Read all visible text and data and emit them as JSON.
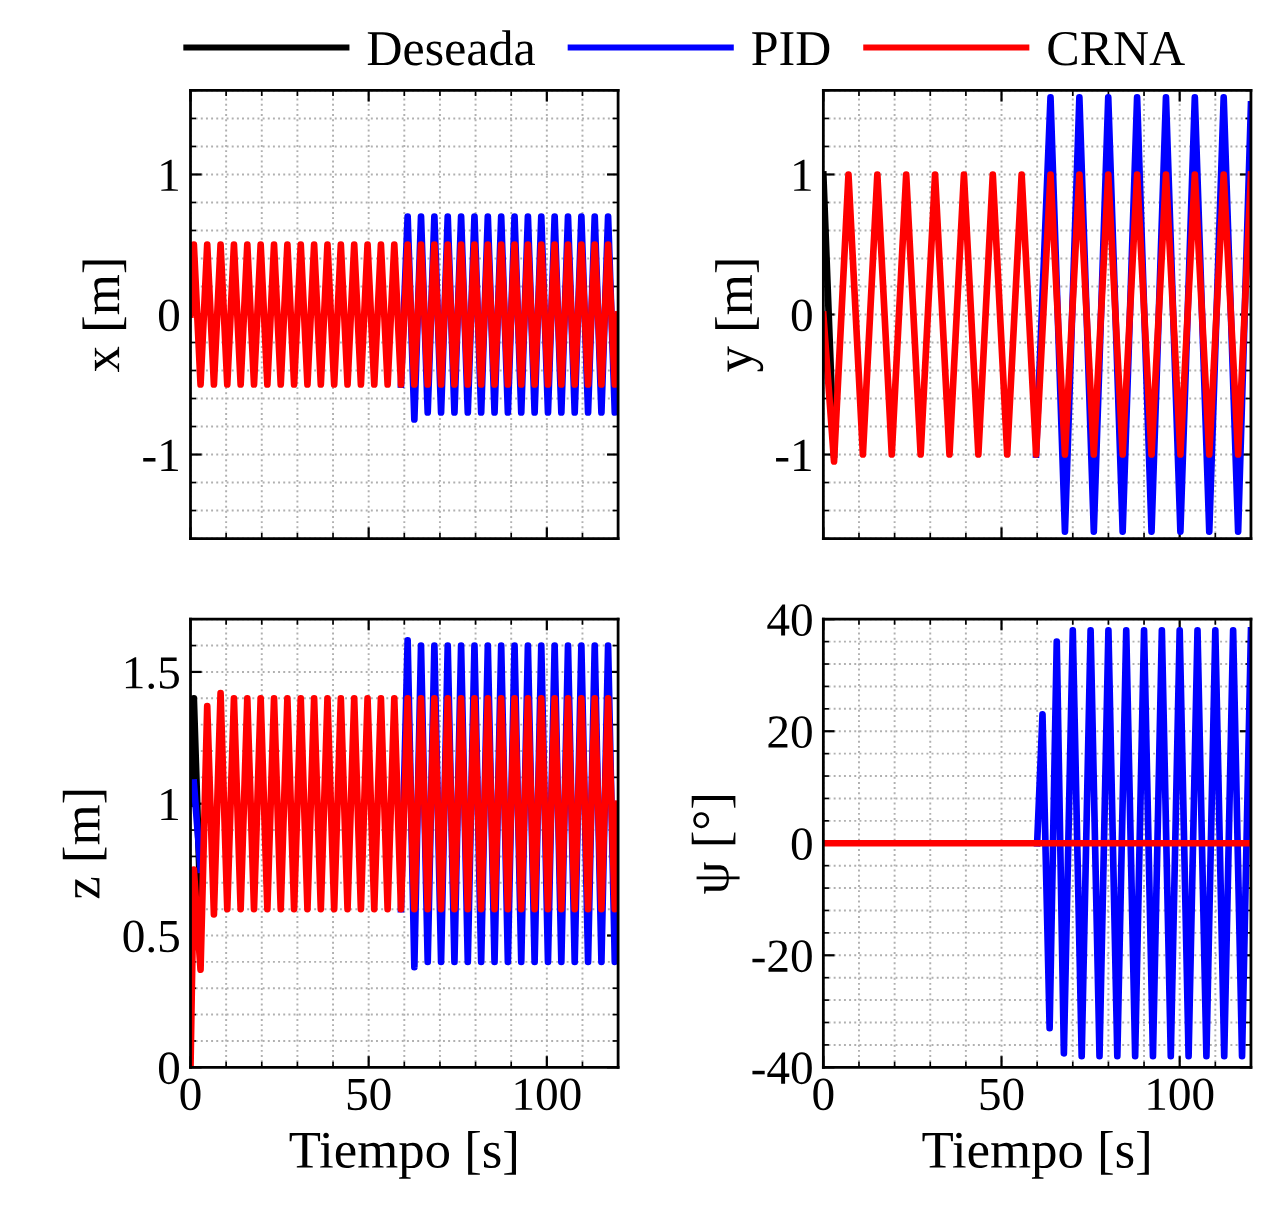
{
  "chart_data": [
    {
      "type": "line",
      "ylabel": "x [m]",
      "xlim": [
        0,
        120
      ],
      "xticks": [
        0,
        50,
        100
      ],
      "ylim": [
        -1.6,
        1.6
      ],
      "yticks": [
        -1,
        0,
        1
      ],
      "tick_labels": "y",
      "grid": true,
      "legend": "top",
      "line_style": "solid",
      "x": [
        0,
        0.94,
        2.82,
        4.69,
        6.57,
        8.44,
        10.32,
        12.19,
        14.07,
        15.94,
        17.82,
        19.69,
        21.57,
        23.44,
        25.32,
        27.19,
        29.07,
        30.94,
        32.82,
        34.69,
        36.57,
        38.44,
        40.32,
        42.19,
        44.07,
        45.94,
        47.82,
        49.69,
        51.57,
        53.44,
        55.32,
        57.19,
        59.07,
        60.94,
        62.82,
        64.69,
        66.57,
        68.44,
        70.32,
        72.19,
        74.07,
        75.94,
        77.82,
        79.69,
        81.57,
        83.44,
        85.32,
        87.19,
        89.07,
        90.94,
        92.82,
        94.69,
        96.57,
        98.44,
        100.32,
        102.19,
        104.07,
        105.94,
        107.82,
        109.69,
        111.57,
        113.44,
        115.32,
        117.19,
        119.07,
        120
      ],
      "series": [
        {
          "name": "Deseada",
          "color": "#000000",
          "values": [
            null,
            null,
            null,
            null,
            null,
            null,
            null,
            null,
            null,
            null,
            null,
            null,
            null,
            null,
            null,
            null,
            null,
            null,
            null,
            null,
            null,
            null,
            null,
            null,
            null,
            null,
            null,
            null,
            null,
            null,
            null,
            null,
            null,
            null,
            null,
            null,
            null,
            null,
            null,
            null,
            null,
            null,
            null,
            null,
            null,
            null,
            null,
            null,
            null,
            null,
            null,
            null,
            null,
            null,
            null,
            null,
            null,
            null,
            null,
            null,
            null,
            null,
            null,
            null,
            null,
            null
          ]
        },
        {
          "name": "PID",
          "color": "#0000ff",
          "values": [
            null,
            null,
            null,
            null,
            null,
            null,
            null,
            null,
            null,
            null,
            null,
            null,
            null,
            null,
            null,
            null,
            null,
            null,
            null,
            null,
            null,
            null,
            null,
            null,
            null,
            null,
            null,
            null,
            null,
            null,
            null,
            null,
            -0.5,
            0.7,
            -0.75,
            0.7,
            -0.7,
            0.7,
            -0.7,
            0.7,
            -0.7,
            0.7,
            -0.7,
            0.7,
            -0.7,
            0.7,
            -0.7,
            0.7,
            -0.7,
            0.7,
            -0.7,
            0.7,
            -0.7,
            0.7,
            -0.7,
            0.7,
            -0.7,
            0.7,
            -0.7,
            0.7,
            -0.7,
            0.7,
            -0.7,
            0.7,
            -0.7,
            -0.65
          ]
        },
        {
          "name": "CRNA",
          "color": "#ff0000",
          "values": [
            0,
            0.5,
            -0.5,
            0.5,
            -0.5,
            0.5,
            -0.5,
            0.5,
            -0.5,
            0.5,
            -0.5,
            0.5,
            -0.5,
            0.5,
            -0.5,
            0.5,
            -0.5,
            0.5,
            -0.5,
            0.5,
            -0.5,
            0.5,
            -0.5,
            0.5,
            -0.5,
            0.5,
            -0.5,
            0.5,
            -0.5,
            0.5,
            -0.5,
            0.5,
            -0.5,
            0.5,
            -0.5,
            0.5,
            -0.5,
            0.5,
            -0.5,
            0.5,
            -0.5,
            0.5,
            -0.5,
            0.5,
            -0.5,
            0.5,
            -0.5,
            0.5,
            -0.5,
            0.5,
            -0.5,
            0.5,
            -0.5,
            0.5,
            -0.5,
            0.5,
            -0.5,
            0.5,
            -0.5,
            0.5,
            -0.5,
            0.5,
            -0.5,
            0.5,
            -0.5,
            0
          ]
        }
      ]
    },
    {
      "type": "line",
      "ylabel": "y [m]",
      "xlim": [
        0,
        120
      ],
      "xticks": [
        0,
        50,
        100
      ],
      "ylim": [
        -1.6,
        1.6
      ],
      "yticks": [
        -1,
        0,
        1
      ],
      "tick_labels": "y",
      "grid": true,
      "line_style": "solid",
      "x": [
        0,
        3,
        7.05,
        11.1,
        15.15,
        19.2,
        23.25,
        27.3,
        31.35,
        35.4,
        39.45,
        43.5,
        47.55,
        51.6,
        55.65,
        59.7,
        63.75,
        67.8,
        71.85,
        75.9,
        79.95,
        84,
        88.05,
        92.1,
        96.15,
        100.2,
        104.25,
        108.3,
        112.35,
        116.4,
        120
      ],
      "series": [
        {
          "color": "#000000",
          "values": [
            1,
            -1,
            null,
            null,
            null,
            null,
            null,
            null,
            null,
            null,
            null,
            null,
            null,
            null,
            null,
            null,
            null,
            null,
            null,
            null,
            null,
            null,
            null,
            null,
            null,
            null,
            null,
            null,
            null,
            null,
            null
          ]
        },
        {
          "color": "#0000ff",
          "values": [
            null,
            null,
            null,
            null,
            null,
            null,
            null,
            null,
            null,
            null,
            null,
            null,
            null,
            null,
            null,
            -1,
            1.55,
            -1.55,
            1.55,
            -1.55,
            1.55,
            -1.55,
            1.55,
            -1.55,
            1.55,
            -1.55,
            1.55,
            -1.55,
            1.55,
            -1.55,
            1.5
          ]
        },
        {
          "color": "#ff0000",
          "values": [
            0,
            -1.05,
            1,
            -1,
            1,
            -1,
            1,
            -1,
            1,
            -1,
            1,
            -1,
            1,
            -1,
            1,
            -1,
            1,
            -1,
            1,
            -1,
            1,
            -1,
            1,
            -1,
            1,
            -1,
            1,
            -1,
            1,
            -1,
            1
          ]
        }
      ]
    },
    {
      "type": "line",
      "xlabel": "Tiempo [s]",
      "ylabel": "z [m]",
      "xlim": [
        0,
        120
      ],
      "xticks": [
        0,
        50,
        100
      ],
      "ylim": [
        0,
        1.7
      ],
      "yticks": [
        0,
        0.5,
        1,
        1.5
      ],
      "grid": true,
      "line_style": "solid",
      "x": [
        0,
        0.94,
        2.82,
        4.69,
        6.57,
        8.44,
        10.32,
        12.19,
        14.07,
        15.94,
        17.82,
        19.69,
        21.57,
        23.44,
        25.32,
        27.19,
        29.07,
        30.94,
        32.82,
        34.69,
        36.57,
        38.44,
        40.32,
        42.19,
        44.07,
        45.94,
        47.82,
        49.69,
        51.57,
        53.44,
        55.32,
        57.19,
        59.07,
        60.94,
        62.82,
        64.69,
        66.57,
        68.44,
        70.32,
        72.19,
        74.07,
        75.94,
        77.82,
        79.69,
        81.57,
        83.44,
        85.32,
        87.19,
        89.07,
        90.94,
        92.82,
        94.69,
        96.57,
        98.44,
        100.32,
        102.19,
        104.07,
        105.94,
        107.82,
        109.69,
        111.57,
        113.44,
        115.32,
        117.19,
        119.07,
        120
      ],
      "series": [
        {
          "color": "#000000",
          "values": [
            1,
            1.4,
            0.6,
            null,
            null,
            null,
            null,
            null,
            null,
            null,
            null,
            null,
            null,
            null,
            null,
            null,
            null,
            null,
            null,
            null,
            null,
            null,
            null,
            null,
            null,
            null,
            null,
            null,
            null,
            null,
            null,
            null,
            null,
            null,
            null,
            null,
            null,
            null,
            null,
            null,
            null,
            null,
            null,
            null,
            null,
            null,
            null,
            null,
            null,
            null,
            null,
            null,
            null,
            null,
            null,
            null,
            null,
            null,
            null,
            null,
            null,
            null,
            null,
            null,
            null,
            null
          ]
        },
        {
          "color": "#0000ff",
          "values": [
            null,
            1.08,
            0.75,
            null,
            null,
            null,
            null,
            null,
            null,
            null,
            null,
            null,
            null,
            null,
            null,
            null,
            null,
            null,
            null,
            null,
            null,
            null,
            null,
            null,
            null,
            null,
            null,
            null,
            null,
            null,
            null,
            null,
            0.6,
            1.62,
            0.38,
            1.6,
            0.4,
            1.6,
            0.4,
            1.6,
            0.4,
            1.6,
            0.4,
            1.6,
            0.4,
            1.6,
            0.4,
            1.6,
            0.4,
            1.6,
            0.4,
            1.6,
            0.4,
            1.6,
            0.4,
            1.6,
            0.4,
            1.6,
            0.4,
            1.6,
            0.4,
            1.6,
            0.4,
            1.6,
            0.4,
            0.45
          ]
        },
        {
          "color": "#ff0000",
          "values": [
            0,
            0.75,
            0.37,
            1.37,
            0.58,
            1.42,
            0.6,
            1.4,
            0.6,
            1.4,
            0.6,
            1.4,
            0.6,
            1.4,
            0.6,
            1.4,
            0.6,
            1.4,
            0.6,
            1.4,
            0.6,
            1.4,
            0.6,
            1.4,
            0.6,
            1.4,
            0.6,
            1.4,
            0.6,
            1.4,
            0.6,
            1.4,
            0.6,
            1.4,
            0.6,
            1.4,
            0.6,
            1.4,
            0.6,
            1.4,
            0.6,
            1.4,
            0.6,
            1.4,
            0.6,
            1.4,
            0.6,
            1.4,
            0.6,
            1.4,
            0.6,
            1.4,
            0.6,
            1.4,
            0.6,
            1.4,
            0.6,
            1.4,
            0.6,
            1.4,
            0.6,
            1.4,
            0.6,
            1.4,
            0.6,
            1
          ]
        }
      ]
    },
    {
      "type": "line",
      "xlabel": "Tiempo [s]",
      "ylabel": "ψ [°]",
      "xlim": [
        0,
        120
      ],
      "xticks": [
        0,
        50,
        100
      ],
      "ylim": [
        -40,
        40
      ],
      "yticks": [
        -40,
        -20,
        0,
        20,
        40
      ],
      "grid": true,
      "line_style": "solid",
      "series": [
        {
          "color": "#0000ff",
          "x": [
            60,
            61.5,
            63.5,
            65.5,
            67.5,
            70,
            72.5,
            75,
            77.5,
            80,
            82.5,
            85,
            87.5,
            90,
            92.5,
            95,
            97.5,
            100,
            102.5,
            105,
            107.5,
            110,
            112.5,
            115,
            117.5,
            120
          ],
          "values": [
            0,
            23,
            -33,
            36,
            -37.5,
            38,
            -38,
            38,
            -38,
            38,
            -38,
            38,
            -38,
            38,
            -38,
            38,
            -38,
            38,
            -38,
            38,
            -38,
            38,
            -38,
            38,
            -38,
            38
          ]
        },
        {
          "color": "#ff0000",
          "x": [
            0,
            120
          ],
          "values": [
            0,
            0
          ]
        }
      ]
    }
  ]
}
